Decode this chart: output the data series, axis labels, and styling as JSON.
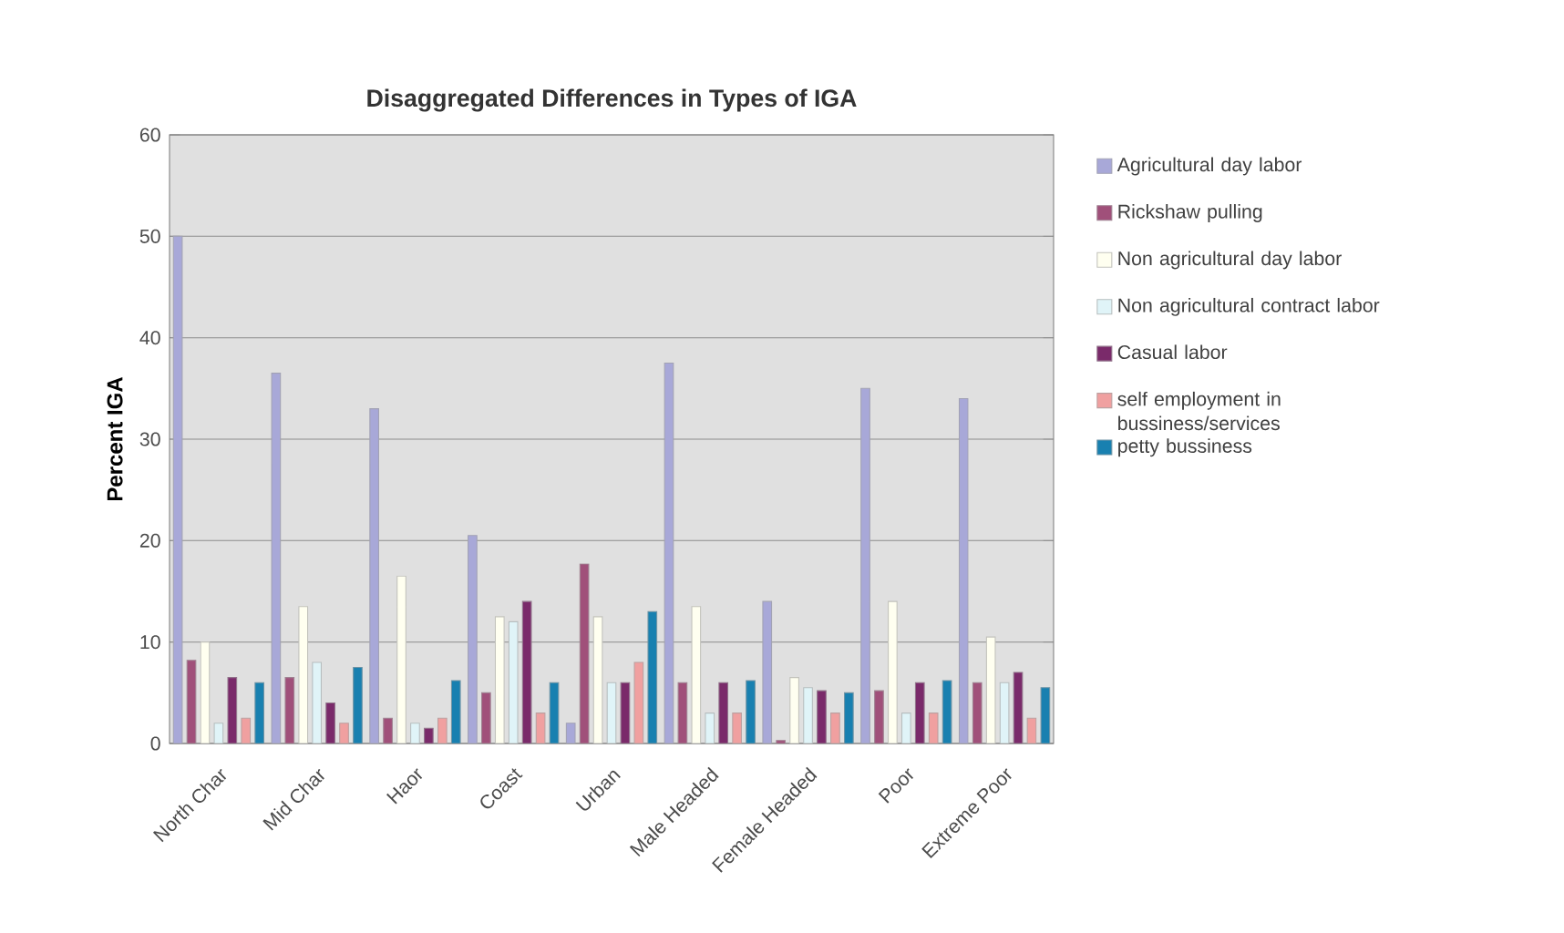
{
  "chart_data": {
    "type": "bar",
    "title": "Disaggregated Differences in Types of IGA",
    "ylabel": "Percent IGA",
    "categories": [
      "North Char",
      "Mid Char",
      "Haor",
      "Coast",
      "Urban",
      "Male Headed",
      "Female Headed",
      "Poor",
      "Extreme Poor"
    ],
    "series": [
      {
        "name": "Agricultural day labor",
        "color": "#a8a8d8",
        "values": [
          50,
          36.5,
          33,
          20.5,
          2,
          37.5,
          14,
          35,
          34
        ]
      },
      {
        "name": "Rickshaw pulling",
        "color": "#a0507a",
        "values": [
          8.2,
          6.5,
          2.5,
          5,
          17.7,
          6,
          0.3,
          5.2,
          6
        ]
      },
      {
        "name": "Non agricultural day labor",
        "color": "#fffff0",
        "values": [
          10,
          13.5,
          16.5,
          12.5,
          12.5,
          13.5,
          6.5,
          14,
          10.5
        ]
      },
      {
        "name": "Non agricultural contract labor",
        "color": "#e0f4f8",
        "values": [
          2,
          8,
          2,
          12,
          6,
          3,
          5.5,
          3,
          6
        ]
      },
      {
        "name": "Casual labor",
        "color": "#7a2a6a",
        "values": [
          6.5,
          4,
          1.5,
          14,
          6,
          6,
          5.2,
          6,
          7
        ]
      },
      {
        "name": "self employment in bussiness/services",
        "color": "#f0a0a0",
        "values": [
          2.5,
          2,
          2.5,
          3,
          8,
          3,
          3,
          3,
          2.5
        ]
      },
      {
        "name": "petty bussiness",
        "color": "#1880b0",
        "values": [
          6,
          7.5,
          6.2,
          6,
          13,
          6.2,
          5,
          6.2,
          5.5
        ]
      }
    ],
    "ylim": [
      0,
      60
    ],
    "yticks": [
      0,
      10,
      20,
      30,
      40,
      50,
      60
    ],
    "grid": "y",
    "legend": "right"
  }
}
